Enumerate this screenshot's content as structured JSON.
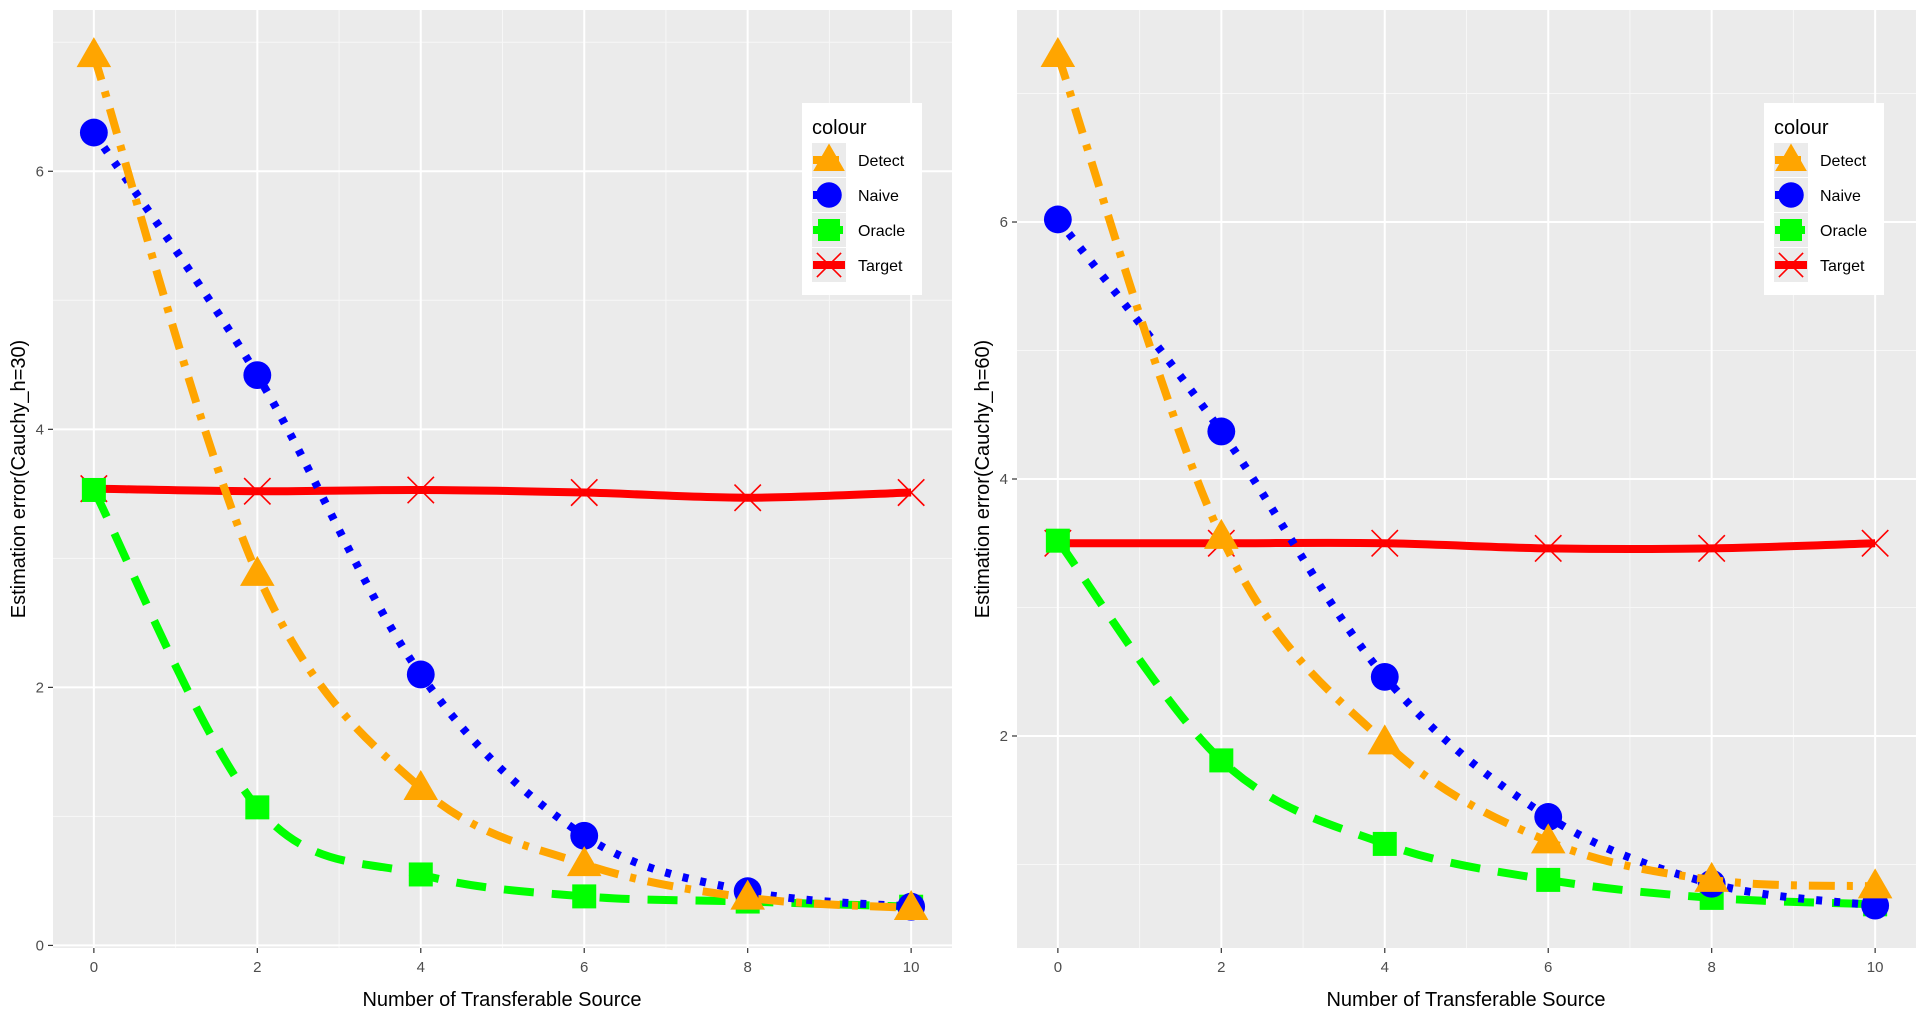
{
  "chart_data": [
    {
      "type": "line",
      "xlabel": "Number of Transferable Source",
      "ylabel": "Estimation error(Cauchy_h=30)",
      "x": [
        0,
        2,
        4,
        6,
        8,
        10
      ],
      "xlim": [
        -0.5,
        10.5
      ],
      "ylim": [
        -0.02,
        7.25
      ],
      "xticks": [
        0,
        2,
        4,
        6,
        8,
        10
      ],
      "yticks": [
        0,
        2,
        4,
        6
      ],
      "grid": true,
      "legend_position": "top-right",
      "legend_title": "colour",
      "series": [
        {
          "name": "Detect",
          "color": "#FFA500",
          "marker": "triangle",
          "linetype": "dotdash",
          "values": [
            6.9,
            2.88,
            1.22,
            0.63,
            0.37,
            0.29
          ]
        },
        {
          "name": "Naive",
          "color": "#0000FF",
          "marker": "circle",
          "linetype": "dotted",
          "values": [
            6.3,
            4.42,
            2.1,
            0.85,
            0.42,
            0.3
          ]
        },
        {
          "name": "Oracle",
          "color": "#00FF00",
          "marker": "square",
          "linetype": "dashed",
          "values": [
            3.53,
            1.07,
            0.55,
            0.38,
            0.34,
            0.3
          ]
        },
        {
          "name": "Target",
          "color": "#FF0000",
          "marker": "cross",
          "linetype": "solid",
          "values": [
            3.54,
            3.52,
            3.53,
            3.51,
            3.47,
            3.51
          ]
        }
      ]
    },
    {
      "type": "line",
      "xlabel": "Number of Transferable Source",
      "ylabel": "Estimation error(Cauchy_h=60)",
      "x": [
        0,
        2,
        4,
        6,
        8,
        10
      ],
      "xlim": [
        -0.5,
        10.5
      ],
      "ylim": [
        0.35,
        7.65
      ],
      "xticks": [
        0,
        2,
        4,
        6,
        8,
        10
      ],
      "yticks": [
        2,
        4,
        6
      ],
      "grid": true,
      "legend_position": "top-right",
      "legend_title": "colour",
      "series": [
        {
          "name": "Detect",
          "color": "#FFA500",
          "marker": "triangle",
          "linetype": "dotdash",
          "values": [
            7.3,
            3.55,
            1.95,
            1.18,
            0.88,
            0.83
          ]
        },
        {
          "name": "Naive",
          "color": "#0000FF",
          "marker": "circle",
          "linetype": "dotted",
          "values": [
            6.02,
            4.37,
            2.46,
            1.37,
            0.85,
            0.68
          ]
        },
        {
          "name": "Oracle",
          "color": "#00FF00",
          "marker": "square",
          "linetype": "dashed",
          "values": [
            3.52,
            1.81,
            1.16,
            0.88,
            0.74,
            0.69
          ]
        },
        {
          "name": "Target",
          "color": "#FF0000",
          "marker": "cross",
          "linetype": "solid",
          "values": [
            3.5,
            3.5,
            3.5,
            3.46,
            3.46,
            3.5
          ]
        }
      ]
    }
  ]
}
